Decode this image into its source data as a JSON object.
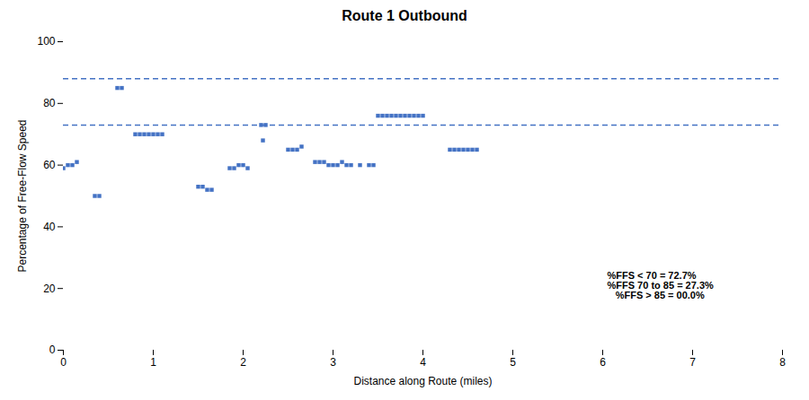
{
  "chart_data": {
    "type": "scatter",
    "title": "Route 1 Outbound",
    "x_label": "Distance along Route (miles)",
    "y_label": "Percentage of Free-Flow Speed",
    "xlim": [
      0,
      8
    ],
    "ylim": [
      0,
      100
    ],
    "xticks": [
      0,
      1,
      2,
      3,
      4,
      5,
      6,
      7,
      8
    ],
    "yticks": [
      0,
      20,
      40,
      60,
      80,
      100
    ],
    "grid": false,
    "color": "#4472C4",
    "marker": "square",
    "x": [
      0.0,
      0.05,
      0.1,
      0.15,
      0.35,
      0.4,
      0.6,
      0.65,
      0.8,
      0.85,
      0.9,
      0.95,
      1.0,
      1.05,
      1.1,
      1.5,
      1.55,
      1.6,
      1.65,
      1.85,
      1.9,
      1.95,
      2.0,
      2.05,
      2.2,
      2.22,
      2.25,
      2.5,
      2.55,
      2.6,
      2.65,
      2.8,
      2.85,
      2.9,
      2.95,
      3.0,
      3.05,
      3.1,
      3.15,
      3.2,
      3.3,
      3.4,
      3.45,
      3.5,
      3.55,
      3.6,
      3.65,
      3.7,
      3.75,
      3.8,
      3.85,
      3.9,
      3.95,
      4.0,
      4.3,
      4.35,
      4.4,
      4.45,
      4.5,
      4.55,
      4.6
    ],
    "values": [
      59,
      60,
      60,
      61,
      50,
      50,
      85,
      85,
      70,
      70,
      70,
      70,
      70,
      70,
      70,
      53,
      53,
      52,
      52,
      59,
      59,
      60,
      60,
      59,
      73,
      68,
      73,
      65,
      65,
      65,
      66,
      61,
      61,
      61,
      60,
      60,
      60,
      61,
      60,
      60,
      60,
      60,
      60,
      76,
      76,
      76,
      76,
      76,
      76,
      76,
      76,
      76,
      76,
      76,
      65,
      65,
      65,
      65,
      65,
      65,
      65
    ],
    "hlines": [
      {
        "y": 88,
        "color": "#4472C4",
        "line_style": "dashed"
      },
      {
        "y": 73,
        "color": "#4472C4",
        "line_style": "dashed"
      }
    ],
    "annotations": [
      {
        "text": "%FFS < 70 = 72.7%\n%FFS 70 to 85 = 27.3%\n   %FFS > 85 = 00.0%",
        "x": 6.05,
        "y": 21
      }
    ]
  }
}
